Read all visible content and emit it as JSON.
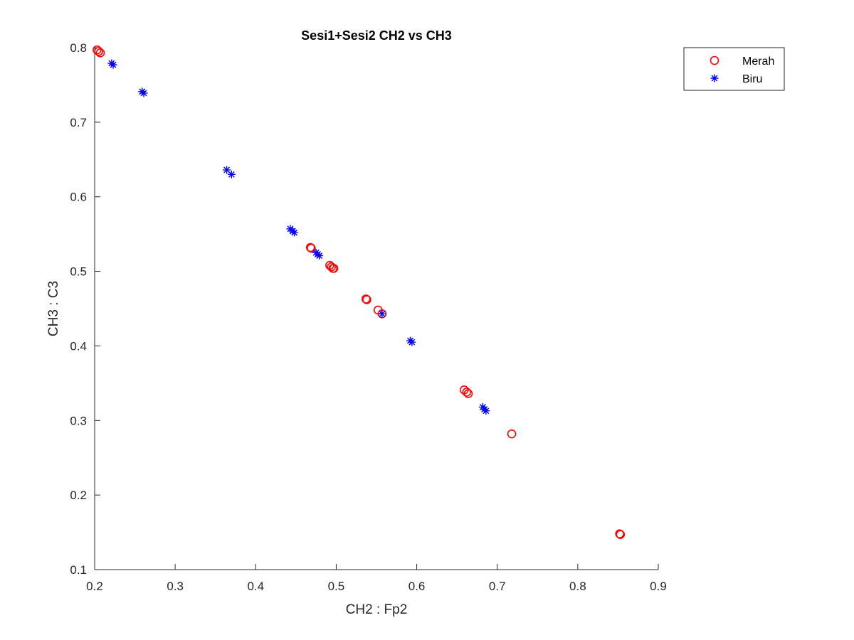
{
  "chart_data": {
    "type": "scatter",
    "title": "Sesi1+Sesi2 CH2 vs CH3",
    "xlabel": "CH2 : Fp2",
    "ylabel": "CH3 : C3",
    "xlim": [
      0.2,
      0.9
    ],
    "ylim": [
      0.1,
      0.8
    ],
    "xticks": [
      "0.2",
      "0.3",
      "0.4",
      "0.5",
      "0.6",
      "0.7",
      "0.8",
      "0.9"
    ],
    "yticks": [
      "0.1",
      "0.2",
      "0.3",
      "0.4",
      "0.5",
      "0.6",
      "0.7",
      "0.8"
    ],
    "grid": false,
    "legend_position": "top-right",
    "series": [
      {
        "name": "Merah",
        "marker": "circle",
        "color": "#ff0000",
        "points": [
          [
            0.203,
            0.797
          ],
          [
            0.205,
            0.795
          ],
          [
            0.207,
            0.793
          ],
          [
            0.468,
            0.532
          ],
          [
            0.469,
            0.531
          ],
          [
            0.492,
            0.508
          ],
          [
            0.494,
            0.506
          ],
          [
            0.496,
            0.504
          ],
          [
            0.497,
            0.504
          ],
          [
            0.537,
            0.463
          ],
          [
            0.538,
            0.462
          ],
          [
            0.552,
            0.448
          ],
          [
            0.557,
            0.443
          ],
          [
            0.659,
            0.341
          ],
          [
            0.662,
            0.338
          ],
          [
            0.664,
            0.336
          ],
          [
            0.718,
            0.282
          ],
          [
            0.852,
            0.148
          ],
          [
            0.853,
            0.147
          ]
        ]
      },
      {
        "name": "Biru",
        "marker": "star",
        "color": "#0000ff",
        "points": [
          [
            0.221,
            0.779
          ],
          [
            0.223,
            0.777
          ],
          [
            0.259,
            0.741
          ],
          [
            0.261,
            0.739
          ],
          [
            0.364,
            0.636
          ],
          [
            0.37,
            0.63
          ],
          [
            0.443,
            0.557
          ],
          [
            0.446,
            0.554
          ],
          [
            0.448,
            0.552
          ],
          [
            0.475,
            0.525
          ],
          [
            0.477,
            0.523
          ],
          [
            0.479,
            0.521
          ],
          [
            0.557,
            0.443
          ],
          [
            0.592,
            0.407
          ],
          [
            0.594,
            0.405
          ],
          [
            0.682,
            0.318
          ],
          [
            0.684,
            0.315
          ],
          [
            0.686,
            0.313
          ]
        ]
      }
    ]
  }
}
